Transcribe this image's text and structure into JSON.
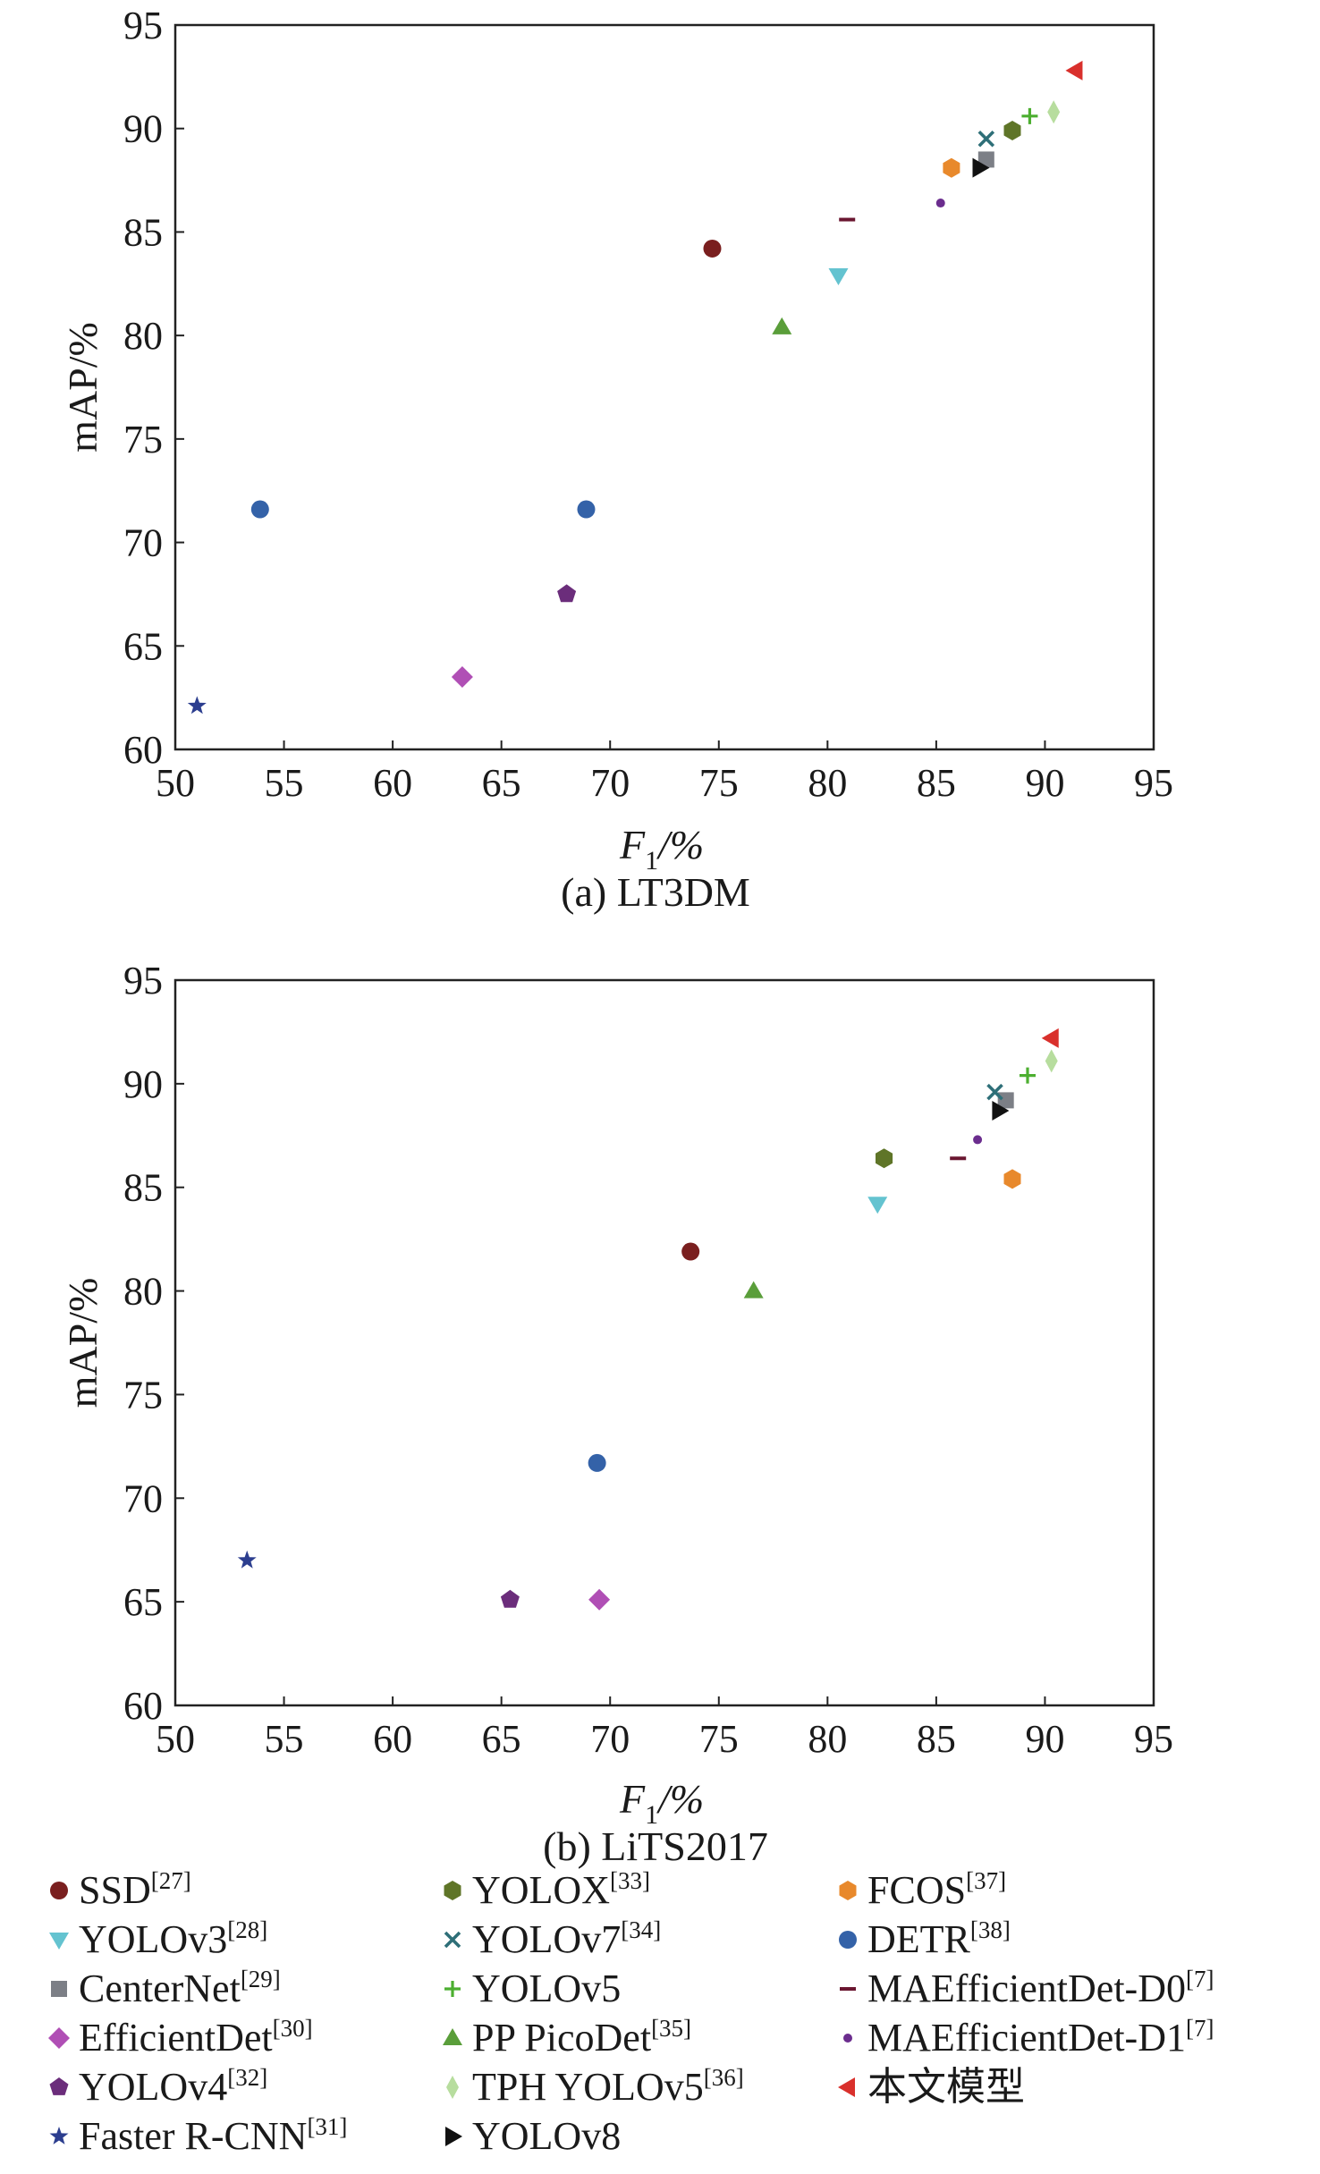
{
  "colors": {
    "SSD": "#7a1f1f",
    "YOLOv3": "#64c3d0",
    "CenterNet": "#7c7f86",
    "EfficientDet": "#b04fb5",
    "YOLOv4": "#6b2d7b",
    "FasterRCNN": "#2c3e8f",
    "YOLOX": "#5f7528",
    "YOLOv7": "#2e6f78",
    "YOLOv5": "#4caf30",
    "PPPicoDet": "#5a9e3a",
    "TPHYOLOv5": "#b7dd9e",
    "YOLOv8": "#111111",
    "FCOS": "#e8892c",
    "DETR": "#3462a8",
    "MAEffD0": "#6a1630",
    "MAEffD1": "#6b2d8e",
    "Ours": "#d9302c"
  },
  "legend": [
    {
      "key": "SSD",
      "label": "SSD",
      "ref": "[27]",
      "marker": "circle",
      "color": "#7a1f1f"
    },
    {
      "key": "YOLOv3",
      "label": "YOLOv3",
      "ref": "[28]",
      "marker": "triangle-down",
      "color": "#64c3d0"
    },
    {
      "key": "CenterNet",
      "label": "CenterNet",
      "ref": "[29]",
      "marker": "square",
      "color": "#7c7f86"
    },
    {
      "key": "EfficientDet",
      "label": "EfficientDet",
      "ref": "[30]",
      "marker": "diamond",
      "color": "#b04fb5"
    },
    {
      "key": "YOLOv4",
      "label": "YOLOv4",
      "ref": "[32]",
      "marker": "pentagon",
      "color": "#6b2d7b"
    },
    {
      "key": "FasterRCNN",
      "label": "Faster R-CNN",
      "ref": "[31]",
      "marker": "star",
      "color": "#2c3e8f"
    },
    {
      "key": "YOLOX",
      "label": "YOLOX",
      "ref": "[33]",
      "marker": "hexagon",
      "color": "#5f7528"
    },
    {
      "key": "YOLOv7",
      "label": "YOLOv7",
      "ref": "[34]",
      "marker": "x",
      "color": "#2e6f78"
    },
    {
      "key": "YOLOv5",
      "label": "YOLOv5",
      "ref": "",
      "marker": "plus",
      "color": "#4caf30"
    },
    {
      "key": "PPPicoDet",
      "label": "PP PicoDet",
      "ref": "[35]",
      "marker": "triangle-up",
      "color": "#5a9e3a"
    },
    {
      "key": "TPHYOLOv5",
      "label": "TPH YOLOv5",
      "ref": "[36]",
      "marker": "thin-diamond",
      "color": "#b7dd9e"
    },
    {
      "key": "YOLOv8",
      "label": "YOLOv8",
      "ref": "",
      "marker": "triangle-right",
      "color": "#111111"
    },
    {
      "key": "FCOS",
      "label": "FCOS",
      "ref": "[37]",
      "marker": "hexagon",
      "color": "#e8892c"
    },
    {
      "key": "DETR",
      "label": "DETR",
      "ref": "[38]",
      "marker": "circle",
      "color": "#3462a8"
    },
    {
      "key": "MAEffD0",
      "label": "MAEfficientDet-D0",
      "ref": "[7]",
      "marker": "hline",
      "color": "#6a1630"
    },
    {
      "key": "MAEffD1",
      "label": "MAEfficientDet-D1",
      "ref": "[7]",
      "marker": "small-dot",
      "color": "#6b2d8e"
    },
    {
      "key": "Ours",
      "label": "本文模型",
      "ref": "",
      "marker": "triangle-left",
      "color": "#d9302c"
    }
  ],
  "chart_data": [
    {
      "type": "scatter",
      "caption": "(a) LT3DM",
      "xlabel_main": "F",
      "xlabel_sub": "1",
      "xlabel_tail": "/%",
      "ylabel": "mAP/%",
      "xlim": [
        50,
        95
      ],
      "ylim": [
        60,
        95
      ],
      "xticks": [
        "50",
        "55",
        "60",
        "65",
        "70",
        "75",
        "80",
        "85",
        "90",
        "95"
      ],
      "yticks": [
        "60",
        "65",
        "70",
        "75",
        "80",
        "85",
        "90",
        "95"
      ],
      "grid": false,
      "points": [
        {
          "key": "SSD",
          "x": 74.7,
          "y": 84.2
        },
        {
          "key": "YOLOv3",
          "x": 80.5,
          "y": 82.9
        },
        {
          "key": "CenterNet",
          "x": 87.3,
          "y": 88.5
        },
        {
          "key": "EfficientDet",
          "x": 63.2,
          "y": 63.5
        },
        {
          "key": "YOLOv4",
          "x": 68.0,
          "y": 67.5
        },
        {
          "key": "FasterRCNN",
          "x": 51.0,
          "y": 62.1
        },
        {
          "key": "YOLOX",
          "x": 88.5,
          "y": 89.9
        },
        {
          "key": "YOLOv7",
          "x": 87.3,
          "y": 89.5
        },
        {
          "key": "YOLOv5",
          "x": 89.3,
          "y": 90.6
        },
        {
          "key": "PPPicoDet",
          "x": 77.9,
          "y": 80.4
        },
        {
          "key": "TPHYOLOv5",
          "x": 90.4,
          "y": 90.8
        },
        {
          "key": "YOLOv8",
          "x": 87.0,
          "y": 88.1
        },
        {
          "key": "FCOS",
          "x": 85.7,
          "y": 88.1
        },
        {
          "key": "DETR",
          "x": 53.9,
          "y": 71.6
        },
        {
          "key": "DETR",
          "x": 68.9,
          "y": 71.6
        },
        {
          "key": "MAEffD0",
          "x": 80.9,
          "y": 85.6
        },
        {
          "key": "MAEffD1",
          "x": 85.2,
          "y": 86.4
        },
        {
          "key": "Ours",
          "x": 91.4,
          "y": 92.8
        }
      ]
    },
    {
      "type": "scatter",
      "caption": "(b) LiTS2017",
      "xlabel_main": "F",
      "xlabel_sub": "1",
      "xlabel_tail": "/%",
      "ylabel": "mAP/%",
      "xlim": [
        50,
        95
      ],
      "ylim": [
        60,
        95
      ],
      "xticks": [
        "50",
        "55",
        "60",
        "65",
        "70",
        "75",
        "80",
        "85",
        "90",
        "95"
      ],
      "yticks": [
        "60",
        "65",
        "70",
        "75",
        "80",
        "85",
        "90",
        "95"
      ],
      "grid": false,
      "points": [
        {
          "key": "SSD",
          "x": 73.7,
          "y": 81.9
        },
        {
          "key": "YOLOv3",
          "x": 82.3,
          "y": 84.2
        },
        {
          "key": "CenterNet",
          "x": 88.2,
          "y": 89.2
        },
        {
          "key": "EfficientDet",
          "x": 69.5,
          "y": 65.1
        },
        {
          "key": "YOLOv4",
          "x": 65.4,
          "y": 65.1
        },
        {
          "key": "FasterRCNN",
          "x": 53.3,
          "y": 67.0
        },
        {
          "key": "YOLOX",
          "x": 82.6,
          "y": 86.4
        },
        {
          "key": "YOLOv7",
          "x": 87.7,
          "y": 89.6
        },
        {
          "key": "YOLOv5",
          "x": 89.2,
          "y": 90.4
        },
        {
          "key": "PPPicoDet",
          "x": 76.6,
          "y": 80.0
        },
        {
          "key": "TPHYOLOv5",
          "x": 90.3,
          "y": 91.1
        },
        {
          "key": "YOLOv8",
          "x": 87.9,
          "y": 88.7
        },
        {
          "key": "FCOS",
          "x": 88.5,
          "y": 85.4
        },
        {
          "key": "DETR",
          "x": 69.4,
          "y": 71.7
        },
        {
          "key": "MAEffD0",
          "x": 86.0,
          "y": 86.4
        },
        {
          "key": "MAEffD1",
          "x": 86.9,
          "y": 87.3
        },
        {
          "key": "Ours",
          "x": 90.3,
          "y": 92.2
        }
      ]
    }
  ]
}
